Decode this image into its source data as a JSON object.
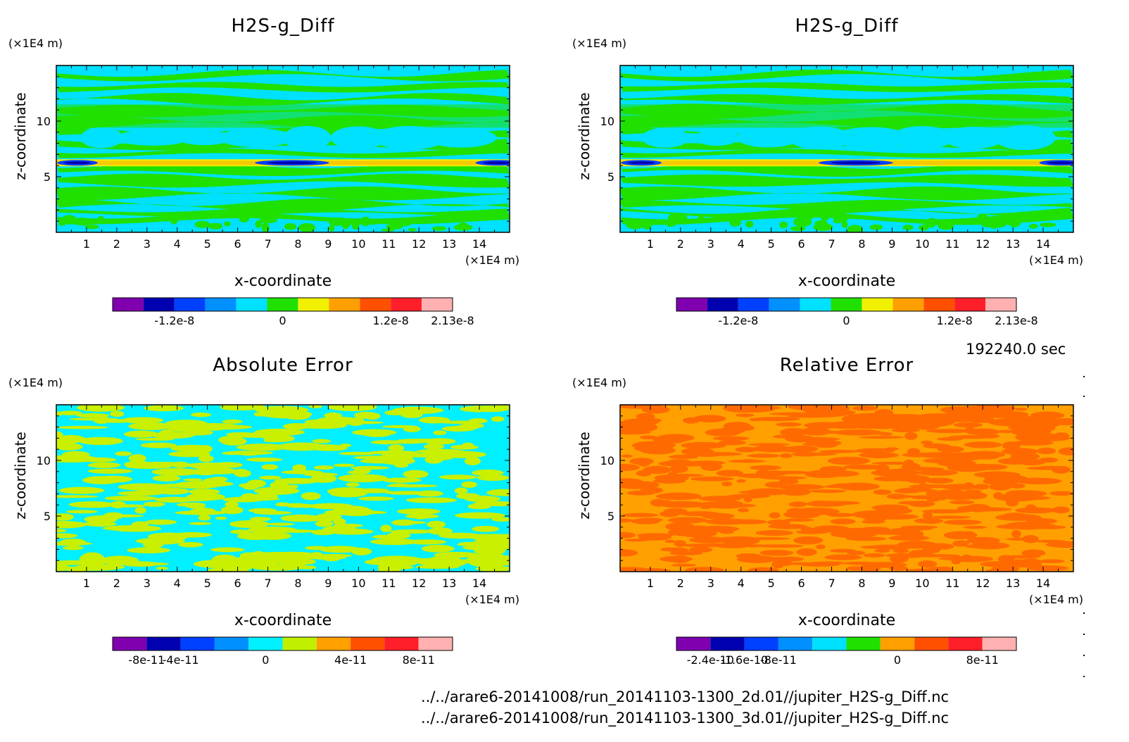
{
  "time_label": "192240.0 sec",
  "files": [
    "../../arare6-20141008/run_20141103-1300_2d.01//jupiter_H2S-g_Diff.nc",
    "../../arare6-20141008/run_20141103-1300_3d.01//jupiter_H2S-g_Diff.nc"
  ],
  "chart_data": [
    {
      "type": "heatmap",
      "title": "H2S-g_Diff",
      "xlabel": "x-coordinate",
      "ylabel": "z-coordinate",
      "x_unit": "(×1E4 m)",
      "y_unit": "(×1E4 m)",
      "xlim": [
        0,
        15
      ],
      "ylim": [
        0,
        15
      ],
      "x_ticks": [
        "1",
        "2",
        "3",
        "4",
        "5",
        "6",
        "7",
        "8",
        "9",
        "10",
        "11",
        "12",
        "13",
        "14"
      ],
      "y_ticks": [
        "5",
        "10"
      ],
      "colorbar": {
        "colors": [
          "#8000b0",
          "#0000b0",
          "#0040ff",
          "#0090ff",
          "#00e0ff",
          "#20e000",
          "#f0f000",
          "#ffa000",
          "#ff5000",
          "#ff1f2a",
          "#ffb0b0"
        ],
        "tick_labels": [
          "-1.2e-8",
          "0",
          "1.2e-8",
          "2.13e-8"
        ]
      },
      "pattern": "h2s"
    },
    {
      "type": "heatmap",
      "title": "H2S-g_Diff",
      "xlabel": "x-coordinate",
      "ylabel": "z-coordinate",
      "x_unit": "(×1E4 m)",
      "y_unit": "(×1E4 m)",
      "xlim": [
        0,
        15
      ],
      "ylim": [
        0,
        15
      ],
      "x_ticks": [
        "1",
        "2",
        "3",
        "4",
        "5",
        "6",
        "7",
        "8",
        "9",
        "10",
        "11",
        "12",
        "13",
        "14"
      ],
      "y_ticks": [
        "5",
        "10"
      ],
      "colorbar": {
        "colors": [
          "#8000b0",
          "#0000b0",
          "#0040ff",
          "#0090ff",
          "#00e0ff",
          "#20e000",
          "#f0f000",
          "#ffa000",
          "#ff5000",
          "#ff1f2a",
          "#ffb0b0"
        ],
        "tick_labels": [
          "-1.2e-8",
          "0",
          "1.2e-8",
          "2.13e-8"
        ]
      },
      "pattern": "h2s"
    },
    {
      "type": "heatmap",
      "title": "Absolute Error",
      "xlabel": "x-coordinate",
      "ylabel": "z-coordinate",
      "x_unit": "(×1E4 m)",
      "y_unit": "(×1E4 m)",
      "xlim": [
        0,
        15
      ],
      "ylim": [
        0,
        15
      ],
      "x_ticks": [
        "1",
        "2",
        "3",
        "4",
        "5",
        "6",
        "7",
        "8",
        "9",
        "10",
        "11",
        "12",
        "13",
        "14"
      ],
      "y_ticks": [
        "5",
        "10"
      ],
      "colorbar": {
        "colors": [
          "#8000b0",
          "#0000b0",
          "#0040ff",
          "#0090ff",
          "#00f0ff",
          "#c0f000",
          "#ffa000",
          "#ff5000",
          "#ff1f2a",
          "#ffb0b0"
        ],
        "tick_labels": [
          "-8e-11",
          "-4e-11",
          "0",
          "4e-11",
          "8e-11"
        ]
      },
      "pattern": "abs"
    },
    {
      "type": "heatmap",
      "title": "Relative Error",
      "xlabel": "x-coordinate",
      "ylabel": "z-coordinate",
      "x_unit": "(×1E4 m)",
      "y_unit": "(×1E4 m)",
      "xlim": [
        0,
        15
      ],
      "ylim": [
        0,
        15
      ],
      "x_ticks": [
        "1",
        "2",
        "3",
        "4",
        "5",
        "6",
        "7",
        "8",
        "9",
        "10",
        "11",
        "12",
        "13",
        "14"
      ],
      "y_ticks": [
        "5",
        "10"
      ],
      "colorbar": {
        "colors": [
          "#8000b0",
          "#0000b0",
          "#0040ff",
          "#0090ff",
          "#00e0ff",
          "#20e000",
          "#ffa000",
          "#ff5000",
          "#ff1f2a",
          "#ffb0b0"
        ],
        "tick_labels": [
          "-2.4e-10",
          "-1.6e-10",
          "-8e-11",
          "0",
          "8e-11"
        ]
      },
      "pattern": "rel"
    }
  ]
}
